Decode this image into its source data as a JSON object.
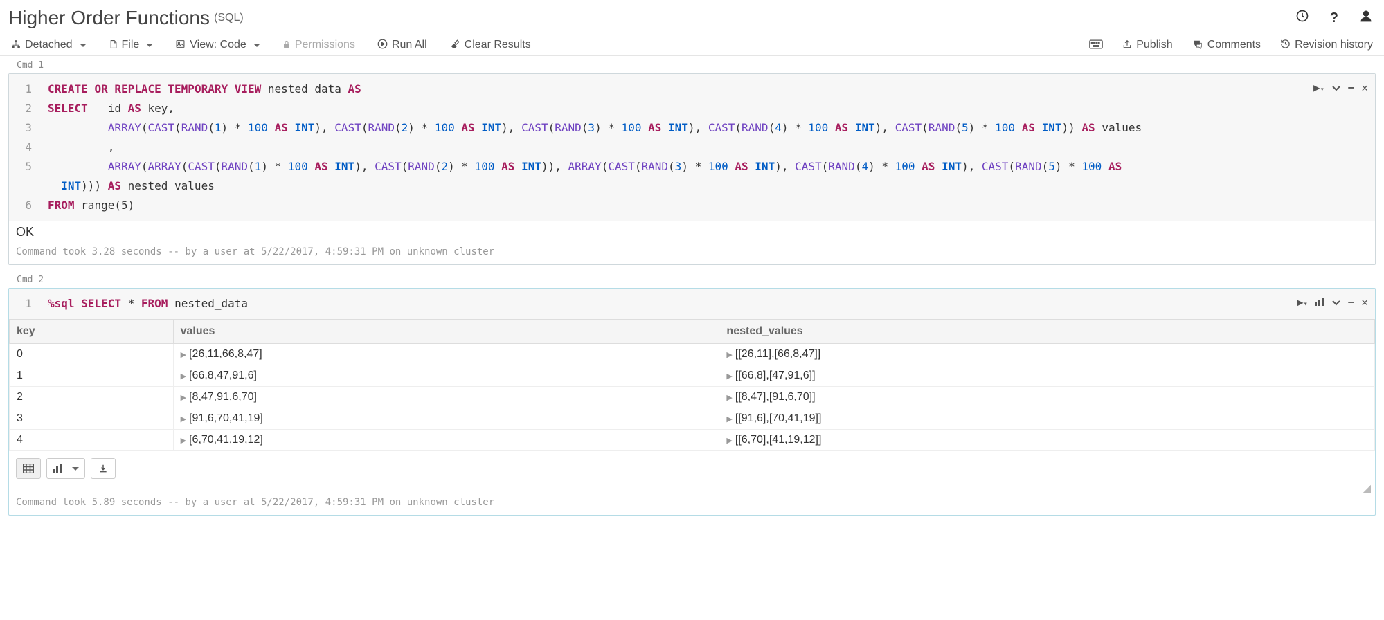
{
  "header": {
    "title": "Higher Order Functions",
    "subtitle": "(SQL)"
  },
  "toolbar": {
    "left": {
      "detached": "Detached",
      "file": "File",
      "view": "View: Code",
      "permissions": "Permissions",
      "runall": "Run All",
      "clear": "Clear Results"
    },
    "right": {
      "publish": "Publish",
      "comments": "Comments",
      "revision": "Revision history"
    }
  },
  "cell1": {
    "label": "Cmd 1",
    "gutter": [
      "1",
      "2",
      "3",
      "4",
      "5",
      "6"
    ],
    "result_ok": "OK",
    "result_meta": "Command took 3.28 seconds -- by a user at 5/22/2017, 4:59:31 PM on unknown cluster",
    "code": {
      "l1_create": "CREATE",
      "l1_or": "OR",
      "l1_replace": "REPLACE TEMPORARY VIEW",
      "l1_name": "nested_data",
      "l1_as": "AS",
      "l2_select": "SELECT",
      "l2_id": "id",
      "l2_as": "AS",
      "l2_key": "key,",
      "l3_txt": "         ARRAY(CAST(RAND(1) * 100 AS INT), CAST(RAND(2) * 100 AS INT), CAST(RAND(3) * 100 AS INT), CAST(RAND(4) * 100 AS INT), CAST(RAND(5) * 100 AS INT)) AS values",
      "l4_txt": "         ,",
      "l5_txt": "         ARRAY(ARRAY(CAST(RAND(1) * 100 AS INT), CAST(RAND(2) * 100 AS INT)), ARRAY(CAST(RAND(3) * 100 AS INT), CAST(RAND(4) * 100 AS INT), CAST(RAND(5) * 100",
      "l5b_txt": "  INT))) AS nested_values",
      "l6_from": "FROM",
      "l6_range": "range(5)"
    }
  },
  "cell2": {
    "label": "Cmd 2",
    "gutter": [
      "1"
    ],
    "code": {
      "magic": "%sql",
      "select": "SELECT",
      "star": "*",
      "from": "FROM",
      "tbl": "nested_data"
    },
    "columns": [
      "key",
      "values",
      "nested_values"
    ],
    "rows": [
      {
        "key": "0",
        "values": "[26,11,66,8,47]",
        "nested": "[[26,11],[66,8,47]]"
      },
      {
        "key": "1",
        "values": "[66,8,47,91,6]",
        "nested": "[[66,8],[47,91,6]]"
      },
      {
        "key": "2",
        "values": "[8,47,91,6,70]",
        "nested": "[[8,47],[91,6,70]]"
      },
      {
        "key": "3",
        "values": "[91,6,70,41,19]",
        "nested": "[[91,6],[70,41,19]]"
      },
      {
        "key": "4",
        "values": "[6,70,41,19,12]",
        "nested": "[[6,70],[41,19,12]]"
      }
    ],
    "result_meta": "Command took 5.89 seconds -- by a user at 5/22/2017, 4:59:31 PM on unknown cluster"
  },
  "colors": {
    "keyword": "#a71d5d",
    "type": "#005cc5",
    "number": "#005cc5",
    "muted": "#999999",
    "border": "#cfd8dc"
  }
}
